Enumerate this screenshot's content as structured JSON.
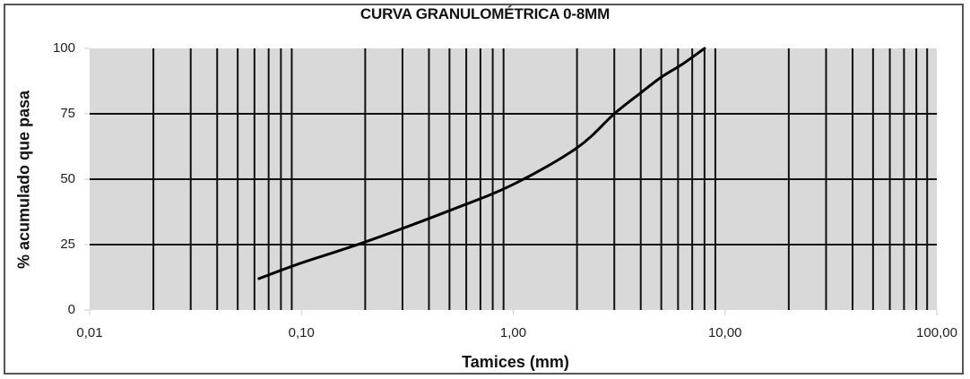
{
  "chart_data": {
    "type": "line",
    "title": "CURVA GRANULOMÉTRICA 0-8MM",
    "xlabel": "Tamices (mm)",
    "ylabel": "% acumulado que pasa",
    "xscale": "log",
    "xlim": [
      0.01,
      100
    ],
    "ylim": [
      0,
      100
    ],
    "x_tick_labels": [
      "0,01",
      "0,10",
      "1,00",
      "10,00",
      "100,00"
    ],
    "y_tick_labels": [
      "0",
      "25",
      "50",
      "75",
      "100"
    ],
    "grid": {
      "horizontal": true,
      "vertical_log_minor": true
    },
    "legend": null,
    "series": [
      {
        "name": "Curva granulométrica 0-8mm",
        "x": [
          0.063,
          0.1,
          0.2,
          0.5,
          1.0,
          2.0,
          3.0,
          4.0,
          5.0,
          6.3,
          8.0
        ],
        "values": [
          12,
          18,
          26,
          38,
          48,
          62,
          75,
          83,
          89,
          94,
          100
        ]
      }
    ],
    "colors": {
      "plot_background": "#d9d9d9",
      "grid": "#111111",
      "line": "#000000"
    }
  }
}
